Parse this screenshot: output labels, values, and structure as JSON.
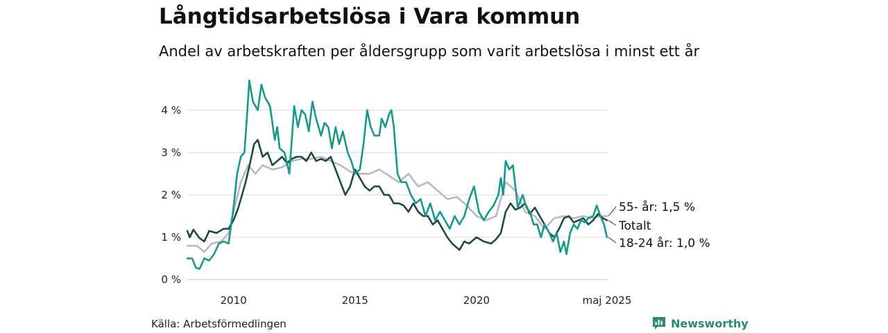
{
  "title": "Långtidsarbetslösa i Vara kommun",
  "subtitle": "Andel av arbetskraften per åldersgrupp som varit arbetslösa i minst ett år",
  "source": "Källa: Arbetsförmedlingen",
  "brand": {
    "name": "Newsworthy",
    "icon": "bar-chart-speech-bubble-icon",
    "color": "#2a8a7a"
  },
  "chart_data": {
    "type": "line",
    "ylim": [
      0,
      4.8
    ],
    "yticks": [
      {
        "value": 0,
        "label": "0 %"
      },
      {
        "value": 1,
        "label": "1 %"
      },
      {
        "value": 2,
        "label": "2 %"
      },
      {
        "value": 3,
        "label": "3 %"
      },
      {
        "value": 4,
        "label": "4 %"
      }
    ],
    "xlim": [
      2008.1,
      2025.4
    ],
    "xticks": [
      {
        "value": 2010,
        "label": "2010"
      },
      {
        "value": 2015,
        "label": "2015"
      },
      {
        "value": 2020,
        "label": "2020"
      },
      {
        "value": 2025.37,
        "label": "maj 2025"
      }
    ],
    "grid": true,
    "legend": "direct labels at line ends",
    "series": [
      {
        "name": "55- år",
        "end_label": "55- år: 1,5 %",
        "color": "#b8b8c4",
        "points": [
          [
            2008.1,
            0.8
          ],
          [
            2008.5,
            0.8
          ],
          [
            2008.8,
            0.65
          ],
          [
            2009.1,
            0.85
          ],
          [
            2009.5,
            0.9
          ],
          [
            2009.8,
            1.1
          ],
          [
            2010.0,
            1.6
          ],
          [
            2010.3,
            2.3
          ],
          [
            2010.6,
            2.7
          ],
          [
            2010.9,
            2.5
          ],
          [
            2011.2,
            2.7
          ],
          [
            2011.6,
            2.6
          ],
          [
            2012.0,
            2.65
          ],
          [
            2012.4,
            2.8
          ],
          [
            2012.8,
            2.85
          ],
          [
            2013.2,
            2.85
          ],
          [
            2013.6,
            2.9
          ],
          [
            2014.0,
            2.8
          ],
          [
            2014.4,
            2.7
          ],
          [
            2014.8,
            2.55
          ],
          [
            2015.2,
            2.5
          ],
          [
            2015.6,
            2.5
          ],
          [
            2016.0,
            2.6
          ],
          [
            2016.4,
            2.45
          ],
          [
            2016.8,
            2.3
          ],
          [
            2017.2,
            2.5
          ],
          [
            2017.6,
            2.2
          ],
          [
            2018.0,
            2.3
          ],
          [
            2018.4,
            2.1
          ],
          [
            2018.8,
            1.9
          ],
          [
            2019.2,
            1.95
          ],
          [
            2019.6,
            1.75
          ],
          [
            2020.0,
            1.5
          ],
          [
            2020.4,
            1.4
          ],
          [
            2020.8,
            1.5
          ],
          [
            2021.2,
            2.3
          ],
          [
            2021.6,
            2.1
          ],
          [
            2022.0,
            1.6
          ],
          [
            2022.4,
            1.5
          ],
          [
            2022.8,
            1.2
          ],
          [
            2023.2,
            1.45
          ],
          [
            2023.6,
            1.5
          ],
          [
            2024.0,
            1.45
          ],
          [
            2024.4,
            1.5
          ],
          [
            2024.8,
            1.45
          ],
          [
            2025.1,
            1.5
          ],
          [
            2025.37,
            1.5
          ]
        ]
      },
      {
        "name": "Totalt",
        "end_label": "Totalt",
        "color": "#1f4a44",
        "points": [
          [
            2008.1,
            1.15
          ],
          [
            2008.2,
            1.0
          ],
          [
            2008.35,
            1.18
          ],
          [
            2008.6,
            0.98
          ],
          [
            2008.8,
            0.9
          ],
          [
            2009.0,
            1.15
          ],
          [
            2009.3,
            1.1
          ],
          [
            2009.6,
            1.2
          ],
          [
            2009.8,
            1.2
          ],
          [
            2010.0,
            1.4
          ],
          [
            2010.2,
            1.7
          ],
          [
            2010.5,
            2.3
          ],
          [
            2010.7,
            2.8
          ],
          [
            2010.85,
            3.2
          ],
          [
            2011.0,
            3.3
          ],
          [
            2011.2,
            2.9
          ],
          [
            2011.4,
            3.0
          ],
          [
            2011.6,
            2.7
          ],
          [
            2011.8,
            2.8
          ],
          [
            2012.0,
            2.9
          ],
          [
            2012.2,
            2.75
          ],
          [
            2012.4,
            2.85
          ],
          [
            2012.6,
            2.9
          ],
          [
            2012.8,
            2.9
          ],
          [
            2013.0,
            2.8
          ],
          [
            2013.2,
            3.0
          ],
          [
            2013.4,
            2.8
          ],
          [
            2013.6,
            2.85
          ],
          [
            2013.8,
            2.8
          ],
          [
            2014.0,
            2.9
          ],
          [
            2014.2,
            2.6
          ],
          [
            2014.4,
            2.3
          ],
          [
            2014.6,
            2.0
          ],
          [
            2014.8,
            2.2
          ],
          [
            2015.0,
            2.6
          ],
          [
            2015.2,
            2.4
          ],
          [
            2015.4,
            2.2
          ],
          [
            2015.6,
            2.1
          ],
          [
            2015.8,
            2.2
          ],
          [
            2016.0,
            2.2
          ],
          [
            2016.2,
            2.0
          ],
          [
            2016.4,
            2.0
          ],
          [
            2016.6,
            1.8
          ],
          [
            2016.8,
            1.8
          ],
          [
            2017.0,
            1.75
          ],
          [
            2017.2,
            1.6
          ],
          [
            2017.4,
            1.8
          ],
          [
            2017.6,
            1.6
          ],
          [
            2017.8,
            1.5
          ],
          [
            2018.0,
            1.5
          ],
          [
            2018.2,
            1.3
          ],
          [
            2018.4,
            1.4
          ],
          [
            2018.6,
            1.2
          ],
          [
            2018.8,
            1.0
          ],
          [
            2019.0,
            0.85
          ],
          [
            2019.3,
            0.7
          ],
          [
            2019.5,
            0.9
          ],
          [
            2019.7,
            0.85
          ],
          [
            2020.0,
            1.0
          ],
          [
            2020.3,
            0.9
          ],
          [
            2020.6,
            0.85
          ],
          [
            2020.8,
            0.95
          ],
          [
            2021.0,
            1.1
          ],
          [
            2021.2,
            1.6
          ],
          [
            2021.4,
            1.8
          ],
          [
            2021.6,
            1.65
          ],
          [
            2021.8,
            1.7
          ],
          [
            2022.0,
            1.8
          ],
          [
            2022.2,
            1.55
          ],
          [
            2022.4,
            1.7
          ],
          [
            2022.6,
            1.5
          ],
          [
            2022.8,
            1.3
          ],
          [
            2023.0,
            1.1
          ],
          [
            2023.2,
            1.0
          ],
          [
            2023.4,
            1.2
          ],
          [
            2023.6,
            1.45
          ],
          [
            2023.8,
            1.5
          ],
          [
            2024.0,
            1.35
          ],
          [
            2024.2,
            1.4
          ],
          [
            2024.4,
            1.45
          ],
          [
            2024.6,
            1.3
          ],
          [
            2024.8,
            1.4
          ],
          [
            2025.0,
            1.55
          ],
          [
            2025.2,
            1.45
          ],
          [
            2025.37,
            1.4
          ]
        ]
      },
      {
        "name": "18-24 år",
        "end_label": "18-24 år: 1,0 %",
        "color": "#17988a",
        "points": [
          [
            2008.1,
            0.5
          ],
          [
            2008.3,
            0.5
          ],
          [
            2008.45,
            0.28
          ],
          [
            2008.6,
            0.25
          ],
          [
            2008.8,
            0.5
          ],
          [
            2009.0,
            0.45
          ],
          [
            2009.2,
            0.6
          ],
          [
            2009.4,
            0.85
          ],
          [
            2009.6,
            0.9
          ],
          [
            2009.8,
            0.85
          ],
          [
            2010.0,
            1.7
          ],
          [
            2010.15,
            2.5
          ],
          [
            2010.3,
            2.9
          ],
          [
            2010.45,
            3.0
          ],
          [
            2010.55,
            3.8
          ],
          [
            2010.65,
            4.7
          ],
          [
            2010.8,
            4.2
          ],
          [
            2011.0,
            4.0
          ],
          [
            2011.15,
            4.6
          ],
          [
            2011.3,
            4.3
          ],
          [
            2011.5,
            4.1
          ],
          [
            2011.7,
            3.3
          ],
          [
            2011.8,
            3.6
          ],
          [
            2011.9,
            3.1
          ],
          [
            2012.1,
            3.0
          ],
          [
            2012.3,
            2.5
          ],
          [
            2012.5,
            4.1
          ],
          [
            2012.65,
            3.6
          ],
          [
            2012.8,
            4.0
          ],
          [
            2012.95,
            3.9
          ],
          [
            2013.1,
            3.5
          ],
          [
            2013.25,
            4.2
          ],
          [
            2013.4,
            3.8
          ],
          [
            2013.6,
            3.4
          ],
          [
            2013.75,
            3.7
          ],
          [
            2013.9,
            3.6
          ],
          [
            2014.05,
            3.1
          ],
          [
            2014.2,
            3.6
          ],
          [
            2014.35,
            3.2
          ],
          [
            2014.5,
            3.5
          ],
          [
            2014.7,
            3.0
          ],
          [
            2014.85,
            2.8
          ],
          [
            2015.0,
            2.5
          ],
          [
            2015.2,
            2.6
          ],
          [
            2015.35,
            3.2
          ],
          [
            2015.5,
            4.0
          ],
          [
            2015.65,
            3.6
          ],
          [
            2015.8,
            3.4
          ],
          [
            2016.0,
            3.4
          ],
          [
            2016.1,
            3.8
          ],
          [
            2016.25,
            3.6
          ],
          [
            2016.4,
            3.9
          ],
          [
            2016.5,
            4.0
          ],
          [
            2016.6,
            3.6
          ],
          [
            2016.75,
            2.5
          ],
          [
            2016.9,
            2.3
          ],
          [
            2017.1,
            2.3
          ],
          [
            2017.3,
            2.0
          ],
          [
            2017.5,
            1.8
          ],
          [
            2017.7,
            1.9
          ],
          [
            2017.9,
            1.5
          ],
          [
            2018.1,
            1.8
          ],
          [
            2018.3,
            1.4
          ],
          [
            2018.5,
            1.6
          ],
          [
            2018.7,
            1.4
          ],
          [
            2018.9,
            1.2
          ],
          [
            2019.1,
            1.5
          ],
          [
            2019.3,
            1.3
          ],
          [
            2019.5,
            1.5
          ],
          [
            2019.7,
            1.9
          ],
          [
            2019.9,
            2.2
          ],
          [
            2020.1,
            1.6
          ],
          [
            2020.3,
            1.4
          ],
          [
            2020.5,
            1.6
          ],
          [
            2020.7,
            1.75
          ],
          [
            2020.9,
            2.0
          ],
          [
            2021.0,
            2.4
          ],
          [
            2021.1,
            2.0
          ],
          [
            2021.2,
            2.8
          ],
          [
            2021.35,
            2.6
          ],
          [
            2021.5,
            2.7
          ],
          [
            2021.7,
            1.7
          ],
          [
            2021.9,
            2.0
          ],
          [
            2022.05,
            1.7
          ],
          [
            2022.2,
            1.6
          ],
          [
            2022.35,
            1.3
          ],
          [
            2022.5,
            1.3
          ],
          [
            2022.65,
            1.0
          ],
          [
            2022.8,
            1.3
          ],
          [
            2023.0,
            1.1
          ],
          [
            2023.15,
            0.9
          ],
          [
            2023.3,
            1.1
          ],
          [
            2023.45,
            0.65
          ],
          [
            2023.6,
            0.9
          ],
          [
            2023.7,
            0.6
          ],
          [
            2023.85,
            1.1
          ],
          [
            2024.0,
            1.3
          ],
          [
            2024.15,
            1.2
          ],
          [
            2024.3,
            1.4
          ],
          [
            2024.45,
            1.35
          ],
          [
            2024.6,
            1.45
          ],
          [
            2024.8,
            1.5
          ],
          [
            2024.95,
            1.75
          ],
          [
            2025.1,
            1.5
          ],
          [
            2025.25,
            1.3
          ],
          [
            2025.37,
            1.0
          ]
        ]
      }
    ]
  }
}
